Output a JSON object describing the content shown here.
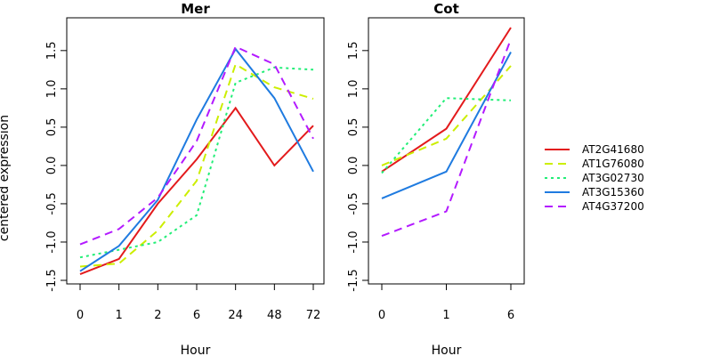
{
  "figure": {
    "ylabel": "centered expression"
  },
  "chart_data": [
    {
      "type": "line",
      "title": "Mer",
      "xlabel": "Hour",
      "ylabel": "centered expression",
      "categories": [
        "0",
        "1",
        "2",
        "6",
        "24",
        "48",
        "72"
      ],
      "ylim": [
        -1.5,
        1.8
      ],
      "yticks": [
        "-1.5",
        "-1.0",
        "-0.5",
        "0.0",
        "0.5",
        "1.0",
        "1.5"
      ],
      "series": [
        {
          "name": "AT2G41680",
          "values": [
            -1.42,
            -1.22,
            -0.5,
            0.08,
            0.75,
            0.0,
            0.52
          ]
        },
        {
          "name": "AT1G76080",
          "values": [
            -1.32,
            -1.28,
            -0.85,
            -0.2,
            1.32,
            1.02,
            0.87
          ]
        },
        {
          "name": "AT3G02730",
          "values": [
            -1.2,
            -1.1,
            -1.0,
            -0.65,
            1.08,
            1.28,
            1.25
          ]
        },
        {
          "name": "AT3G15360",
          "values": [
            -1.38,
            -1.05,
            -0.45,
            0.6,
            1.52,
            0.88,
            -0.08
          ]
        },
        {
          "name": "AT4G37200",
          "values": [
            -1.03,
            -0.83,
            -0.42,
            0.32,
            1.55,
            1.32,
            0.35
          ]
        }
      ]
    },
    {
      "type": "line",
      "title": "Cot",
      "xlabel": "Hour",
      "categories": [
        "0",
        "1",
        "6"
      ],
      "ylim": [
        -1.5,
        1.8
      ],
      "yticks": [
        "-1.5",
        "-1.0",
        "-0.5",
        "0.0",
        "0.5",
        "1.0",
        "1.5"
      ],
      "series": [
        {
          "name": "AT2G41680",
          "values": [
            -0.08,
            0.48,
            1.8
          ]
        },
        {
          "name": "AT1G76080",
          "values": [
            0.0,
            0.35,
            1.3
          ]
        },
        {
          "name": "AT3G02730",
          "values": [
            -0.1,
            0.88,
            0.85
          ]
        },
        {
          "name": "AT3G15360",
          "values": [
            -0.43,
            -0.08,
            1.48
          ]
        },
        {
          "name": "AT4G37200",
          "values": [
            -0.92,
            -0.6,
            1.65
          ]
        }
      ]
    }
  ],
  "legend": {
    "placement": "right",
    "entries": [
      {
        "name": "AT2G41680",
        "color": "#e31a1c",
        "dash": "solid"
      },
      {
        "name": "AT1G76080",
        "color": "#ccee00",
        "dash": "dashed"
      },
      {
        "name": "AT3G02730",
        "color": "#22ee77",
        "dash": "dotted"
      },
      {
        "name": "AT3G15360",
        "color": "#1f7be0",
        "dash": "solid"
      },
      {
        "name": "AT4G37200",
        "color": "#b31aff",
        "dash": "dashed"
      }
    ]
  }
}
